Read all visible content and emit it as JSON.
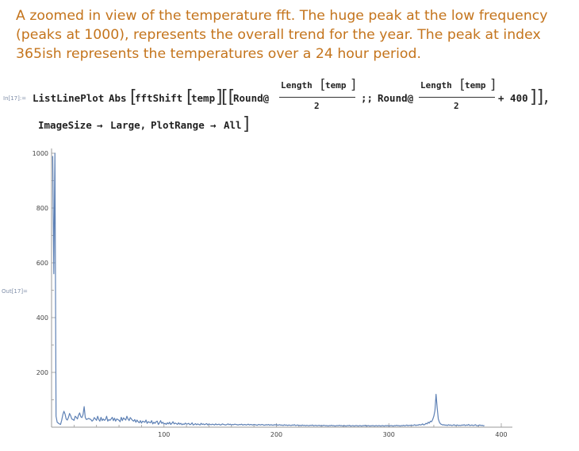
{
  "description": "A zoomed in view of the temperature fft. The huge peak at the low frequency (peaks at 1000), represents the overall trend for the year. The peak at index 365ish represents the temperatures over a 24 hour period.",
  "input_label": "In[17]:=",
  "output_label": "Out[17]=",
  "code": {
    "func": "ListLinePlot",
    "abs": "Abs",
    "fft": "fftShift",
    "temp": "temp",
    "round": "Round@",
    "length": "Length",
    "denom": "2",
    "span": ";;",
    "plus": "+ 400",
    "closing": "]],",
    "line2_opt1": "ImageSize",
    "arrow": "→",
    "line2_val1": "Large,",
    "line2_opt2": "PlotRange",
    "line2_val2": "All"
  },
  "chart_data": {
    "type": "line",
    "title": "",
    "xlabel": "",
    "ylabel": "",
    "xlim": [
      0,
      400
    ],
    "ylim": [
      0,
      1000
    ],
    "x_ticks": [
      100,
      200,
      300,
      400
    ],
    "y_ticks": [
      200,
      400,
      600,
      800,
      1000
    ],
    "grid": false,
    "series": [
      {
        "color": "#5e81b5",
        "x_start": 1,
        "values": [
          990,
          560,
          1000,
          40,
          18,
          15,
          12,
          10,
          25,
          45,
          58,
          48,
          30,
          26,
          35,
          50,
          42,
          30,
          28,
          25,
          40,
          36,
          30,
          44,
          52,
          38,
          35,
          46,
          75,
          35,
          28,
          30,
          32,
          30,
          28,
          22,
          26,
          35,
          30,
          25,
          40,
          28,
          22,
          36,
          24,
          30,
          25,
          28,
          40,
          22,
          28,
          25,
          30,
          36,
          24,
          33,
          22,
          30,
          28,
          25,
          20,
          36,
          24,
          34,
          30,
          26,
          40,
          30,
          24,
          35,
          30,
          25,
          22,
          28,
          18,
          26,
          20,
          16,
          24,
          15,
          22,
          20,
          18,
          26,
          14,
          20,
          18,
          16,
          24,
          12,
          18,
          14,
          20,
          22,
          10,
          16,
          24,
          14,
          18,
          12,
          14,
          10,
          16,
          12,
          18,
          10,
          14,
          20,
          12,
          15,
          13,
          10,
          16,
          11,
          14,
          9,
          12,
          10,
          15,
          11,
          12,
          14,
          9,
          11,
          16,
          8,
          10,
          13,
          9,
          12,
          10,
          8,
          14,
          10,
          12,
          9,
          11,
          13,
          8,
          12,
          10,
          9,
          11,
          10,
          8,
          12,
          9,
          10,
          11,
          8,
          9,
          12,
          10,
          9,
          8,
          10,
          12,
          9,
          11,
          8,
          10,
          9,
          11,
          10,
          9,
          8,
          10,
          9,
          11,
          8,
          9,
          10,
          8,
          9,
          11,
          8,
          10,
          9,
          8,
          10,
          9,
          8,
          7,
          10,
          9,
          8,
          10,
          9,
          7,
          8,
          9,
          8,
          10,
          7,
          9,
          8,
          7,
          9,
          8,
          10,
          7,
          8,
          9,
          7,
          8,
          6,
          9,
          7,
          8,
          6,
          8,
          7,
          6,
          8,
          7,
          9,
          6,
          7,
          8,
          6,
          7,
          5,
          8,
          6,
          7,
          5,
          7,
          6,
          5,
          7,
          6,
          8,
          5,
          6,
          7,
          5,
          6,
          7,
          5,
          6,
          5,
          7,
          6,
          5,
          6,
          4,
          6,
          5,
          7,
          5,
          6,
          4,
          5,
          6,
          5,
          7,
          5,
          6,
          4,
          6,
          5,
          4,
          6,
          5,
          7,
          4,
          5,
          6,
          4,
          5,
          6,
          5,
          4,
          6,
          5,
          4,
          6,
          5,
          7,
          4,
          5,
          6,
          4,
          5,
          5,
          6,
          4,
          5,
          6,
          4,
          6,
          5,
          4,
          6,
          5,
          4,
          6,
          5,
          6,
          4,
          5,
          6,
          5,
          4,
          6,
          5,
          7,
          5,
          6,
          4,
          6,
          5,
          7,
          5,
          6,
          8,
          5,
          7,
          6,
          8,
          6,
          7,
          9,
          6,
          8,
          7,
          10,
          8,
          9,
          12,
          8,
          10,
          14,
          12,
          18,
          15,
          22,
          20,
          28,
          40,
          60,
          120,
          70,
          30,
          18,
          12,
          10,
          8,
          9,
          7,
          8,
          6,
          9,
          7,
          8,
          6,
          7,
          9,
          6,
          7,
          8,
          6,
          7,
          6,
          8,
          7,
          9,
          6,
          8,
          7,
          10,
          6,
          7,
          8,
          6,
          7,
          9,
          6,
          5,
          7,
          8,
          6,
          7,
          5,
          6
        ]
      }
    ]
  }
}
